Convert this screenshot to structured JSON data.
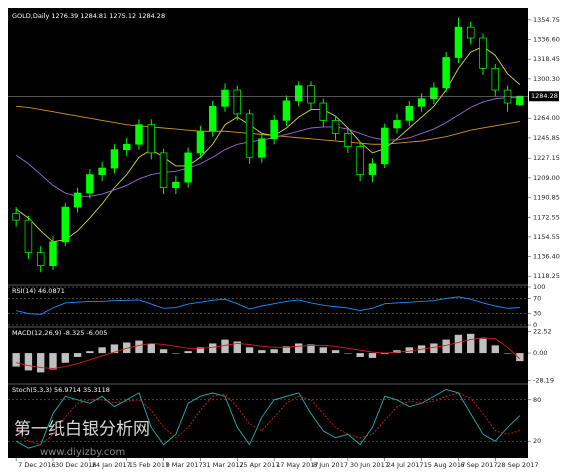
{
  "chart_data": [
    {
      "type": "candlestick",
      "title": "GOLD,Daily  1276.39 1284.81 1275.12 1284.28",
      "categories": [
        "7 Dec 2016",
        null,
        null,
        "30 Dec 2016",
        null,
        null,
        "24 Jan 2017",
        null,
        null,
        "15 Feb 2017",
        null,
        null,
        "9 Mar 2017",
        null,
        null,
        "31 Mar 2017",
        null,
        null,
        "25 Apr 2017",
        null,
        null,
        "17 May 2017",
        null,
        null,
        "8 Jun 2017",
        null,
        null,
        "30 Jun 2017",
        null,
        null,
        "24 Jul 2017",
        null,
        null,
        "15 Aug 2017",
        null,
        null,
        "6 Sep 2017",
        null,
        null,
        "28 Sep 2017",
        null,
        null
      ],
      "open": [
        1176,
        1170,
        1140,
        1128,
        1150,
        1182,
        1195,
        1212,
        1218,
        1235,
        1240,
        1258,
        1232,
        1200,
        1205,
        1232,
        1252,
        1275,
        1290,
        1268,
        1228,
        1245,
        1262,
        1280,
        1294,
        1278,
        1262,
        1250,
        1238,
        1212,
        1222,
        1255,
        1262,
        1275,
        1282,
        1292,
        1320,
        1348,
        1338,
        1310,
        1290,
        1276.39
      ],
      "high": [
        1182,
        1174,
        1146,
        1155,
        1186,
        1200,
        1217,
        1224,
        1240,
        1246,
        1263,
        1263,
        1236,
        1211,
        1237,
        1257,
        1280,
        1296,
        1294,
        1272,
        1250,
        1267,
        1285,
        1298,
        1298,
        1282,
        1266,
        1254,
        1242,
        1227,
        1259,
        1268,
        1280,
        1287,
        1297,
        1325,
        1357,
        1353,
        1342,
        1314,
        1294,
        1284.81
      ],
      "low": [
        1164,
        1134,
        1122,
        1124,
        1146,
        1177,
        1190,
        1206,
        1213,
        1229,
        1235,
        1226,
        1194,
        1194,
        1200,
        1227,
        1247,
        1270,
        1262,
        1222,
        1223,
        1240,
        1257,
        1275,
        1272,
        1256,
        1244,
        1232,
        1206,
        1205,
        1218,
        1250,
        1257,
        1270,
        1277,
        1288,
        1315,
        1332,
        1304,
        1284,
        1270,
        1275.12
      ],
      "close": [
        1170,
        1140,
        1128,
        1150,
        1182,
        1195,
        1212,
        1218,
        1235,
        1240,
        1258,
        1232,
        1200,
        1205,
        1232,
        1252,
        1275,
        1290,
        1268,
        1228,
        1245,
        1262,
        1280,
        1294,
        1278,
        1262,
        1250,
        1238,
        1212,
        1222,
        1255,
        1262,
        1275,
        1282,
        1292,
        1320,
        1348,
        1338,
        1310,
        1290,
        1278,
        1284.28
      ],
      "up_color": "#00ff00",
      "down_color": "#000000",
      "overlays": [
        {
          "color": "#d8d840",
          "values": [
            1180,
            1172,
            1160,
            1150,
            1152,
            1160,
            1172,
            1185,
            1200,
            1212,
            1228,
            1235,
            1228,
            1220,
            1220,
            1228,
            1240,
            1258,
            1265,
            1258,
            1250,
            1248,
            1255,
            1265,
            1272,
            1272,
            1266,
            1255,
            1242,
            1232,
            1236,
            1245,
            1255,
            1265,
            1275,
            1290,
            1310,
            1325,
            1330,
            1322,
            1305,
            1295
          ]
        },
        {
          "color": "#9a6ad8",
          "values": [
            1230,
            1222,
            1212,
            1202,
            1195,
            1192,
            1192,
            1194,
            1198,
            1202,
            1208,
            1212,
            1214,
            1215,
            1218,
            1222,
            1228,
            1235,
            1240,
            1242,
            1244,
            1246,
            1249,
            1252,
            1255,
            1256,
            1256,
            1254,
            1250,
            1246,
            1244,
            1244,
            1246,
            1250,
            1254,
            1260,
            1267,
            1274,
            1279,
            1282,
            1283,
            1283
          ]
        },
        {
          "color": "#d8902a",
          "values": [
            1275,
            1274,
            1272,
            1270,
            1268,
            1266,
            1264,
            1262,
            1260,
            1258,
            1257,
            1256,
            1255,
            1254,
            1253,
            1252,
            1252,
            1252,
            1251,
            1250,
            1249,
            1248,
            1247,
            1246,
            1245,
            1244,
            1243,
            1242,
            1241,
            1240,
            1240,
            1241,
            1242,
            1243,
            1245,
            1247,
            1250,
            1253,
            1255,
            1257,
            1259,
            1261
          ]
        }
      ],
      "ylim": [
        1112,
        1362
      ],
      "yticks": [
        1354.75,
        {
          "value": 1336.6,
          "label": "1336.60"
        },
        1318.45,
        {
          "value": 1300.3,
          "label": "1300.30"
        },
        {
          "value": 1264,
          "label": "1264.00"
        },
        1245.85,
        1227.15,
        {
          "value": 1209,
          "label": "1209.00"
        },
        1190.85,
        1172.55,
        1154.55,
        {
          "value": 1136.4,
          "label": "1136.40"
        },
        1118.25
      ],
      "grid": false
    },
    {
      "type": "line",
      "title": "RSI(14) 46.0871",
      "series": [
        {
          "color": "#1e90ff",
          "values": [
            38,
            30,
            28,
            45,
            58,
            60,
            62,
            62,
            64,
            65,
            66,
            55,
            44,
            46,
            55,
            60,
            65,
            68,
            56,
            42,
            50,
            56,
            62,
            66,
            58,
            52,
            48,
            45,
            38,
            44,
            56,
            58,
            60,
            62,
            64,
            70,
            74,
            68,
            58,
            50,
            44,
            46
          ]
        }
      ],
      "ylim": [
        0,
        100
      ],
      "yticks": [
        100,
        70,
        30,
        0
      ],
      "grid": true
    },
    {
      "type": "bar",
      "title": "MACD(12,26,9) -8.325 -6.005",
      "series": [
        {
          "color": "#c0c0c0",
          "values": [
            -14,
            -18,
            -20,
            -17,
            -10,
            -4,
            2,
            6,
            9,
            11,
            13,
            10,
            4,
            0,
            2,
            6,
            10,
            14,
            12,
            6,
            3,
            4,
            7,
            10,
            9,
            6,
            3,
            0,
            -4,
            -5,
            -1,
            3,
            6,
            8,
            10,
            14,
            19,
            20,
            15,
            8,
            0,
            -8.325
          ]
        },
        {
          "color": "#d02020",
          "style": "line",
          "values": [
            -10,
            -13,
            -15,
            -16,
            -14,
            -11,
            -7,
            -3,
            1,
            5,
            8,
            10,
            9,
            7,
            5,
            5,
            6,
            8,
            10,
            9,
            7,
            6,
            6,
            7,
            8,
            8,
            7,
            5,
            3,
            1,
            0,
            1,
            2,
            4,
            6,
            8,
            11,
            14,
            16,
            15,
            6,
            -6.005
          ]
        }
      ],
      "ylim": [
        -30,
        25
      ],
      "yticks": [
        22.52,
        {
          "value": 0,
          "label": "0.00"
        },
        -28.19
      ],
      "grid": false
    },
    {
      "type": "line",
      "title": "Stoch(5,3,3) 56.9714 35.3118",
      "series": [
        {
          "color": "#20b2aa",
          "values": [
            20,
            10,
            15,
            60,
            85,
            80,
            75,
            85,
            70,
            80,
            90,
            40,
            15,
            30,
            75,
            85,
            90,
            85,
            40,
            15,
            55,
            80,
            85,
            90,
            60,
            35,
            25,
            30,
            15,
            40,
            85,
            80,
            70,
            75,
            85,
            95,
            90,
            60,
            30,
            20,
            40,
            56.9714
          ]
        },
        {
          "color": "#d02020",
          "dashed": true,
          "values": [
            35,
            20,
            15,
            30,
            55,
            75,
            80,
            80,
            76,
            78,
            80,
            65,
            40,
            25,
            40,
            65,
            85,
            88,
            70,
            45,
            35,
            55,
            75,
            85,
            80,
            60,
            40,
            30,
            25,
            30,
            50,
            70,
            78,
            75,
            78,
            85,
            90,
            82,
            60,
            35,
            30,
            35.3118
          ]
        }
      ],
      "ylim": [
        0,
        100
      ],
      "yticks": [
        80,
        20
      ],
      "grid": true
    }
  ],
  "watermark": {
    "title": "第一纸白银分析网",
    "url": "www.diyizby.com"
  }
}
